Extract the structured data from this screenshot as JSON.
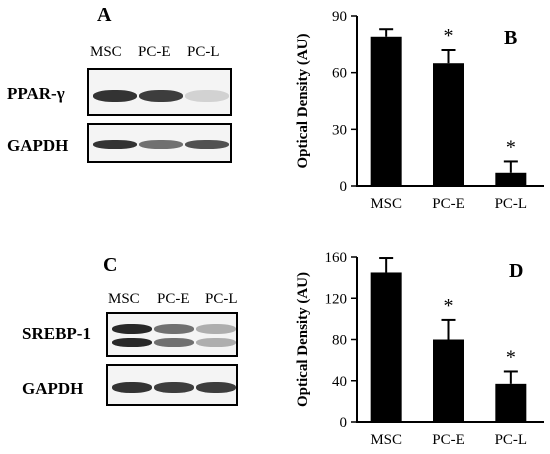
{
  "panels": {
    "a": {
      "letter": "A",
      "lanes": [
        "MSC",
        "PC-E",
        "PC-L"
      ],
      "rows": [
        {
          "label": "PPAR-γ",
          "intensities": [
            0.9,
            0.85,
            0.12
          ]
        },
        {
          "label": "GAPDH",
          "intensities": [
            0.9,
            0.6,
            0.75
          ]
        }
      ]
    },
    "c": {
      "letter": "C",
      "lanes": [
        "MSC",
        "PC-E",
        "PC-L"
      ],
      "rows": [
        {
          "label": "SREBP-1",
          "intensities": [
            0.95,
            0.6,
            0.3
          ]
        },
        {
          "label": "GAPDH",
          "intensities": [
            0.9,
            0.85,
            0.85
          ]
        }
      ]
    }
  },
  "chart_data": [
    {
      "type": "bar",
      "letter": "B",
      "categories": [
        "MSC",
        "PC-E",
        "PC-L"
      ],
      "values": [
        79,
        65,
        7
      ],
      "errors": [
        4,
        7,
        6
      ],
      "annotations": [
        "",
        "*",
        "*"
      ],
      "ylabel": "Optical Density (AU)",
      "ylim": [
        0,
        90
      ],
      "yticks": [
        0,
        30,
        60,
        90
      ],
      "bar_color": "#000000"
    },
    {
      "type": "bar",
      "letter": "D",
      "categories": [
        "MSC",
        "PC-E",
        "PC-L"
      ],
      "values": [
        145,
        80,
        37
      ],
      "errors": [
        14,
        19,
        12
      ],
      "annotations": [
        "",
        "*",
        "*"
      ],
      "ylabel": "Optical Density (AU)",
      "ylim": [
        0,
        160
      ],
      "yticks": [
        0,
        40,
        80,
        120,
        160
      ],
      "bar_color": "#000000"
    }
  ]
}
